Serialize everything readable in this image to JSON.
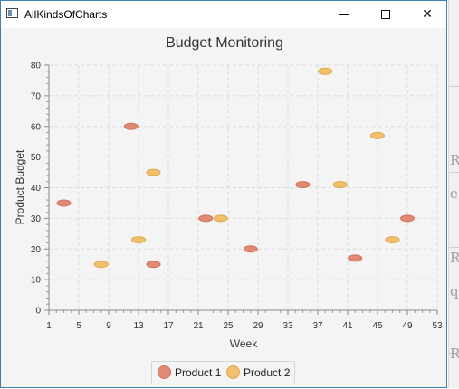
{
  "window": {
    "title": "AllKindsOfCharts",
    "controls": {
      "minimize": "—",
      "maximize": "☐",
      "close": "✕"
    }
  },
  "background_glyphs": [
    "R",
    "e",
    "R",
    "q",
    "R"
  ],
  "colors": {
    "product1_fill": "#e08a74",
    "product1_stroke": "#d0705a",
    "product2_fill": "#f0c06c",
    "product2_stroke": "#dda84b",
    "window_border": "#3c7fb1"
  },
  "legend": {
    "placement": "bottom-center",
    "items": [
      {
        "label": "Product 1",
        "color": "#e08a74"
      },
      {
        "label": "Product 2",
        "color": "#f0c06c"
      }
    ]
  },
  "chart_data": {
    "type": "scatter",
    "title": "Budget Monitoring",
    "xlabel": "Week",
    "ylabel": "Product Budget",
    "xlim": [
      1,
      53
    ],
    "ylim": [
      0,
      80
    ],
    "x_ticks": [
      1,
      5,
      9,
      13,
      17,
      21,
      25,
      29,
      33,
      37,
      41,
      45,
      49,
      53
    ],
    "y_ticks": [
      0,
      10,
      20,
      30,
      40,
      50,
      60,
      70,
      80
    ],
    "grid": true,
    "series": [
      {
        "name": "Product 1",
        "points": [
          [
            3,
            35
          ],
          [
            12,
            60
          ],
          [
            15,
            15
          ],
          [
            22,
            30
          ],
          [
            28,
            20
          ],
          [
            35,
            41
          ],
          [
            42,
            17
          ],
          [
            49,
            30
          ]
        ]
      },
      {
        "name": "Product 2",
        "points": [
          [
            8,
            15
          ],
          [
            13,
            23
          ],
          [
            15,
            45
          ],
          [
            24,
            30
          ],
          [
            38,
            78
          ],
          [
            40,
            41
          ],
          [
            45,
            57
          ],
          [
            47,
            23
          ]
        ]
      }
    ]
  }
}
